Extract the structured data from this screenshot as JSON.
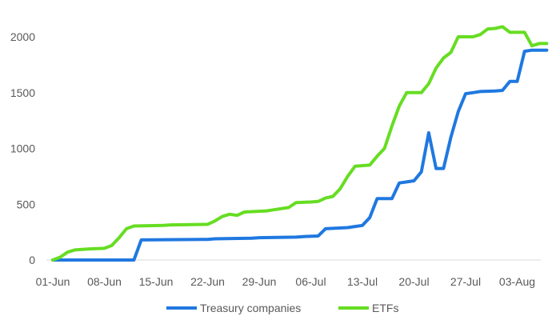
{
  "chart_data": {
    "type": "line",
    "title": "",
    "xlabel": "",
    "ylabel": "",
    "x_tick_labels": [
      "01-Jun",
      "08-Jun",
      "15-Jun",
      "22-Jun",
      "29-Jun",
      "06-Jul",
      "13-Jul",
      "20-Jul",
      "27-Jul",
      "03-Aug"
    ],
    "x_start": "2025-06-01",
    "x_end": "2025-08-07",
    "ylim": [
      0,
      2000
    ],
    "y_ticks": [
      0,
      500,
      1000,
      1500,
      2000
    ],
    "grid": false,
    "legend_position": "bottom",
    "series": [
      {
        "name": "Treasury companies",
        "color": "#1f78e0",
        "points": [
          [
            "2025-06-01",
            0
          ],
          [
            "2025-06-02",
            0
          ],
          [
            "2025-06-12",
            0
          ],
          [
            "2025-06-13",
            180
          ],
          [
            "2025-06-22",
            185
          ],
          [
            "2025-06-23",
            190
          ],
          [
            "2025-06-28",
            195
          ],
          [
            "2025-06-29",
            200
          ],
          [
            "2025-07-04",
            205
          ],
          [
            "2025-07-05",
            210
          ],
          [
            "2025-07-07",
            215
          ],
          [
            "2025-07-08",
            280
          ],
          [
            "2025-07-11",
            290
          ],
          [
            "2025-07-12",
            300
          ],
          [
            "2025-07-13",
            310
          ],
          [
            "2025-07-14",
            380
          ],
          [
            "2025-07-15",
            550
          ],
          [
            "2025-07-17",
            550
          ],
          [
            "2025-07-18",
            690
          ],
          [
            "2025-07-19",
            700
          ],
          [
            "2025-07-20",
            710
          ],
          [
            "2025-07-21",
            790
          ],
          [
            "2025-07-22",
            1140
          ],
          [
            "2025-07-23",
            820
          ],
          [
            "2025-07-24",
            820
          ],
          [
            "2025-07-25",
            1100
          ],
          [
            "2025-07-26",
            1330
          ],
          [
            "2025-07-27",
            1490
          ],
          [
            "2025-07-28",
            1500
          ],
          [
            "2025-07-29",
            1510
          ],
          [
            "2025-07-31",
            1515
          ],
          [
            "2025-08-01",
            1520
          ],
          [
            "2025-08-02",
            1600
          ],
          [
            "2025-08-03",
            1600
          ],
          [
            "2025-08-04",
            1870
          ],
          [
            "2025-08-05",
            1880
          ],
          [
            "2025-08-07",
            1880
          ]
        ]
      },
      {
        "name": "ETFs",
        "color": "#66dd22",
        "points": [
          [
            "2025-06-01",
            0
          ],
          [
            "2025-06-02",
            25
          ],
          [
            "2025-06-03",
            70
          ],
          [
            "2025-06-04",
            90
          ],
          [
            "2025-06-05",
            95
          ],
          [
            "2025-06-06",
            100
          ],
          [
            "2025-06-08",
            105
          ],
          [
            "2025-06-09",
            130
          ],
          [
            "2025-06-10",
            200
          ],
          [
            "2025-06-11",
            280
          ],
          [
            "2025-06-12",
            305
          ],
          [
            "2025-06-16",
            310
          ],
          [
            "2025-06-17",
            315
          ],
          [
            "2025-06-22",
            320
          ],
          [
            "2025-06-23",
            350
          ],
          [
            "2025-06-24",
            390
          ],
          [
            "2025-06-25",
            410
          ],
          [
            "2025-06-26",
            400
          ],
          [
            "2025-06-27",
            430
          ],
          [
            "2025-06-30",
            440
          ],
          [
            "2025-07-01",
            450
          ],
          [
            "2025-07-03",
            470
          ],
          [
            "2025-07-04",
            515
          ],
          [
            "2025-07-06",
            520
          ],
          [
            "2025-07-07",
            525
          ],
          [
            "2025-07-08",
            555
          ],
          [
            "2025-07-09",
            570
          ],
          [
            "2025-07-10",
            640
          ],
          [
            "2025-07-11",
            750
          ],
          [
            "2025-07-12",
            840
          ],
          [
            "2025-07-14",
            850
          ],
          [
            "2025-07-15",
            930
          ],
          [
            "2025-07-16",
            1000
          ],
          [
            "2025-07-17",
            1200
          ],
          [
            "2025-07-18",
            1380
          ],
          [
            "2025-07-19",
            1500
          ],
          [
            "2025-07-21",
            1500
          ],
          [
            "2025-07-22",
            1580
          ],
          [
            "2025-07-23",
            1720
          ],
          [
            "2025-07-24",
            1810
          ],
          [
            "2025-07-25",
            1860
          ],
          [
            "2025-07-26",
            2000
          ],
          [
            "2025-07-28",
            2000
          ],
          [
            "2025-07-29",
            2020
          ],
          [
            "2025-07-30",
            2070
          ],
          [
            "2025-07-31",
            2075
          ],
          [
            "2025-08-01",
            2090
          ],
          [
            "2025-08-02",
            2040
          ],
          [
            "2025-08-04",
            2040
          ],
          [
            "2025-08-05",
            1920
          ],
          [
            "2025-08-06",
            1940
          ],
          [
            "2025-08-07",
            1940
          ]
        ]
      }
    ]
  }
}
